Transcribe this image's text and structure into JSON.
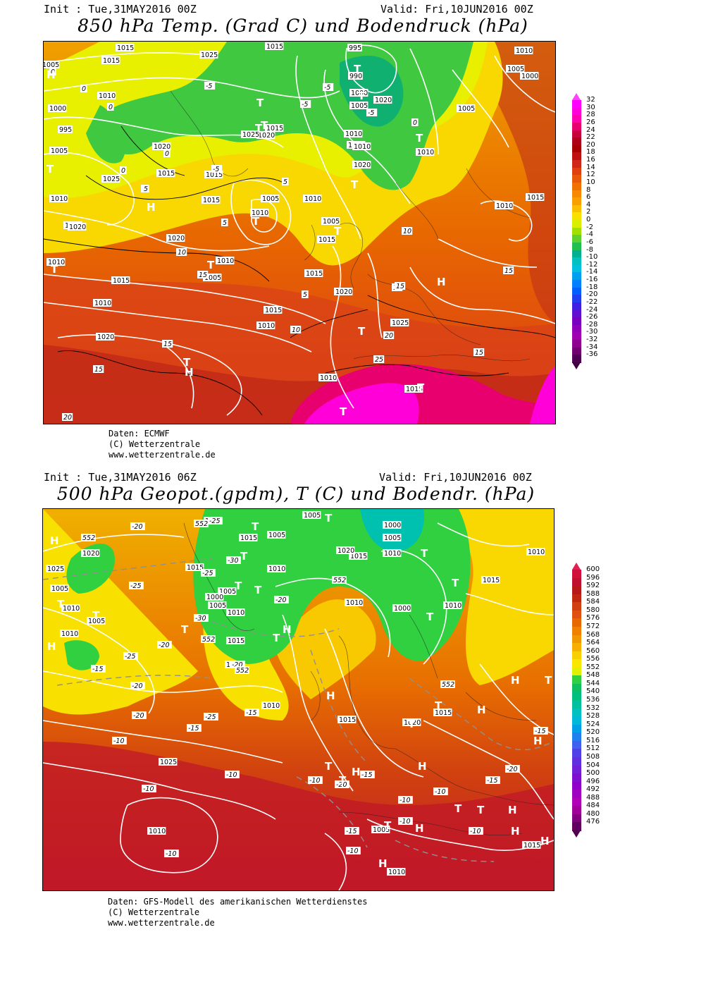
{
  "top": {
    "init": "Init : Tue,31MAY2016 00Z",
    "valid": "Valid: Fri,10JUN2016 00Z",
    "title": "850 hPa Temp. (Grad C) und Bodendruck (hPa)",
    "credits": [
      "Daten: ECMWF",
      "(C) Wetterzentrale",
      "www.wetterzentrale.de"
    ],
    "colorbar": {
      "labels": [
        "32",
        "30",
        "28",
        "26",
        "24",
        "22",
        "20",
        "18",
        "16",
        "14",
        "12",
        "10",
        "8",
        "6",
        "4",
        "2",
        "0",
        "-2",
        "-4",
        "-6",
        "-8",
        "-10",
        "-12",
        "-14",
        "-16",
        "-18",
        "-20",
        "-22",
        "-24",
        "-26",
        "-28",
        "-30",
        "-32",
        "-34",
        "-36"
      ],
      "colors": [
        "#ff00ff",
        "#ff00d8",
        "#ff00b0",
        "#e8006e",
        "#c8003c",
        "#b00018",
        "#a80000",
        "#c01010",
        "#d02818",
        "#e04010",
        "#e85808",
        "#f07000",
        "#f88800",
        "#f8a000",
        "#f8c000",
        "#f8e000",
        "#d8f000",
        "#a0e000",
        "#60d030",
        "#20c050",
        "#00b090",
        "#00c0c0",
        "#00c0e0",
        "#00a0f0",
        "#0080ff",
        "#0060ff",
        "#2040f0",
        "#4020e0",
        "#6010d0",
        "#7800c0",
        "#9000b8",
        "#a000b0",
        "#900090",
        "#700070",
        "#500050"
      ],
      "top_color": "#ff40ff",
      "bottom_color": "#400040"
    },
    "pressure_labels": [
      "1015",
      "1025",
      "1015",
      "995",
      "990",
      "1000",
      "1005",
      "1010",
      "1015",
      "1020",
      "1010",
      "1005",
      "1000",
      "1005",
      "1010",
      "1015",
      "1020",
      "1025",
      "1015",
      "1020",
      "1015",
      "1010",
      "1005",
      "1000",
      "995",
      "1005",
      "1010",
      "1015",
      "1020",
      "1025",
      "1015",
      "1020",
      "1015",
      "1010",
      "1005",
      "1010",
      "1015",
      "1010",
      "1020",
      "1010",
      "1015",
      "1010",
      "1005",
      "1015",
      "1010",
      "1005",
      "1010",
      "1015",
      "1020",
      "1025",
      "1015",
      "1010",
      "1015",
      "1020",
      "1010"
    ],
    "temp_labels": [
      "-5",
      "0",
      "-5",
      "0",
      "-5",
      "-5",
      "0",
      "0",
      "5",
      "0",
      "5",
      "-5",
      "10",
      "5",
      "15",
      "15",
      "10",
      "15",
      "15",
      "20",
      "25",
      "15",
      "20",
      "15",
      "10",
      "5",
      "5",
      "0",
      "15",
      "15"
    ],
    "markers": [
      "H",
      "T",
      "T",
      "T",
      "T",
      "T",
      "T",
      "T",
      "T",
      "T",
      "H",
      "T",
      "T",
      "T",
      "T",
      "H",
      "T",
      "H",
      "T",
      "T"
    ]
  },
  "bottom": {
    "init": "Init : Tue,31MAY2016 06Z",
    "valid": "Valid: Fri,10JUN2016 00Z",
    "title": "500 hPa Geopot.(gpdm), T (C) und Bodendr. (hPa)",
    "credits": [
      "Daten: GFS-Modell des amerikanischen Wetterdienstes",
      "(C) Wetterzentrale",
      "www.wetterzentrale.de"
    ],
    "colorbar": {
      "labels": [
        "600",
        "596",
        "592",
        "588",
        "584",
        "580",
        "576",
        "572",
        "568",
        "564",
        "560",
        "556",
        "552",
        "548",
        "544",
        "540",
        "536",
        "532",
        "528",
        "524",
        "520",
        "516",
        "512",
        "508",
        "504",
        "500",
        "496",
        "492",
        "488",
        "484",
        "480",
        "476"
      ],
      "colors": [
        "#d0103a",
        "#c01030",
        "#b81818",
        "#c02810",
        "#d04010",
        "#e05010",
        "#e86800",
        "#f08000",
        "#f09800",
        "#f8b000",
        "#f8d000",
        "#f8e800",
        "#e0f000",
        "#30d040",
        "#10c060",
        "#00c080",
        "#00c0a0",
        "#00c0c0",
        "#00b8d8",
        "#00a0e8",
        "#2080f0",
        "#4060f0",
        "#5040e8",
        "#6030e0",
        "#7020d8",
        "#8010d0",
        "#9000c8",
        "#a000c0",
        "#b000b8",
        "#a00098",
        "#800080",
        "#600060"
      ],
      "top_color": "#e02050",
      "bottom_color": "#500050"
    },
    "pressure_labels": [
      "1005",
      "1000",
      "1005",
      "1010",
      "1015",
      "1020",
      "1005",
      "1015",
      "1020",
      "1015",
      "1010",
      "1000",
      "1010",
      "1005",
      "1000",
      "1005",
      "1010",
      "1015",
      "1020",
      "1010",
      "1015",
      "1025",
      "1010",
      "1015",
      "1020",
      "1010",
      "1015",
      "1010",
      "1005",
      "1010",
      "1015",
      "1020",
      "1025",
      "1005",
      "1010",
      "1005",
      "1010"
    ],
    "temp_labels": [
      "-20",
      "-25",
      "-30",
      "-25",
      "-25",
      "-30",
      "-20",
      "-25",
      "-20",
      "-15",
      "-20",
      "-15",
      "-25",
      "-20",
      "-20",
      "-15",
      "-10",
      "-10",
      "-10",
      "-10",
      "-20",
      "-15",
      "-10",
      "-15",
      "-10",
      "-10",
      "-15",
      "-20",
      "-15",
      "-10",
      "-10",
      "-10"
    ],
    "geopot_labels": [
      "552",
      "552",
      "552",
      "552",
      "552",
      "552"
    ],
    "markers": [
      "H",
      "T",
      "T",
      "T",
      "T",
      "T",
      "T",
      "T",
      "T",
      "H",
      "T",
      "T",
      "T",
      "T",
      "H",
      "H",
      "T",
      "H",
      "H",
      "T",
      "T",
      "H",
      "H",
      "T",
      "T",
      "H",
      "T",
      "H",
      "H",
      "H",
      "T",
      "T",
      "H",
      "H"
    ]
  }
}
